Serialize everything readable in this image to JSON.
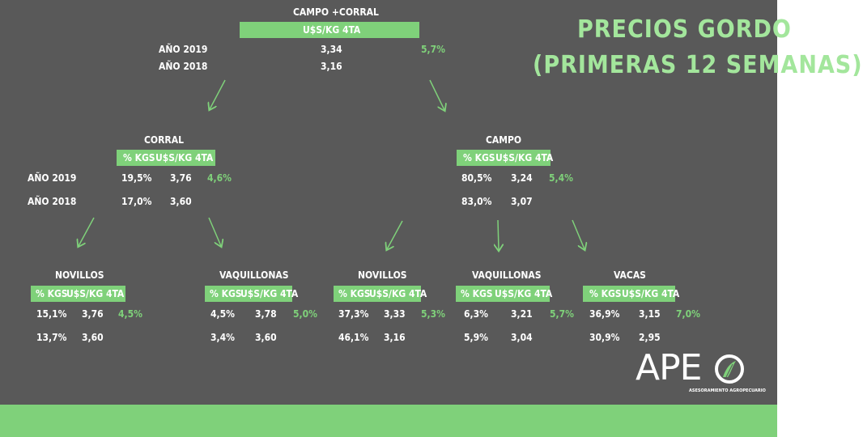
{
  "title": {
    "line1": "PRECIOS GORDO",
    "line2": "(PRIMERAS 12 SEMANAS)"
  },
  "top": {
    "name": "CAMPO +CORRAL",
    "header": "U$S/KG 4TA",
    "rows": [
      {
        "label": "AÑO 2019",
        "price": "3,34",
        "change": "5,7%"
      },
      {
        "label": "AÑO 2018",
        "price": "3,16"
      }
    ]
  },
  "col_header_kgs": "% KGS",
  "col_header_price": "U$S/KG 4TA",
  "year_labels": [
    "AÑO 2019",
    "AÑO 2018"
  ],
  "corral": {
    "name": "CORRAL",
    "y2019": {
      "kgs": "19,5%",
      "price": "3,76",
      "change": "4,6%"
    },
    "y2018": {
      "kgs": "17,0%",
      "price": "3,60"
    }
  },
  "campo": {
    "name": "CAMPO",
    "y2019": {
      "kgs": "80,5%",
      "price": "3,24",
      "change": "5,4%"
    },
    "y2018": {
      "kgs": "83,0%",
      "price": "3,07"
    }
  },
  "leaves": [
    {
      "name": "NOVILLOS",
      "y2019": {
        "kgs": "15,1%",
        "price": "3,76",
        "change": "4,5%"
      },
      "y2018": {
        "kgs": "13,7%",
        "price": "3,60"
      }
    },
    {
      "name": "VAQUILLONAS",
      "y2019": {
        "kgs": "4,5%",
        "price": "3,78",
        "change": "5,0%"
      },
      "y2018": {
        "kgs": "3,4%",
        "price": "3,60"
      }
    },
    {
      "name": "NOVILLOS",
      "y2019": {
        "kgs": "37,3%",
        "price": "3,33",
        "change": "5,3%"
      },
      "y2018": {
        "kgs": "46,1%",
        "price": "3,16"
      }
    },
    {
      "name": "VAQUILLONAS",
      "y2019": {
        "kgs": "6,3%",
        "price": "3,21",
        "change": "5,7%"
      },
      "y2018": {
        "kgs": "5,9%",
        "price": "3,04"
      }
    },
    {
      "name": "VACAS",
      "y2019": {
        "kgs": "36,9%",
        "price": "3,15",
        "change": "7,0%"
      },
      "y2018": {
        "kgs": "30,9%",
        "price": "2,95"
      }
    }
  ],
  "logo": {
    "text": "APE",
    "tagline": "ASESORAMIENTO AGROPECUARIO"
  },
  "colors": {
    "background": "#595959",
    "accent": "#7fd17a",
    "title": "#a3e69c"
  }
}
